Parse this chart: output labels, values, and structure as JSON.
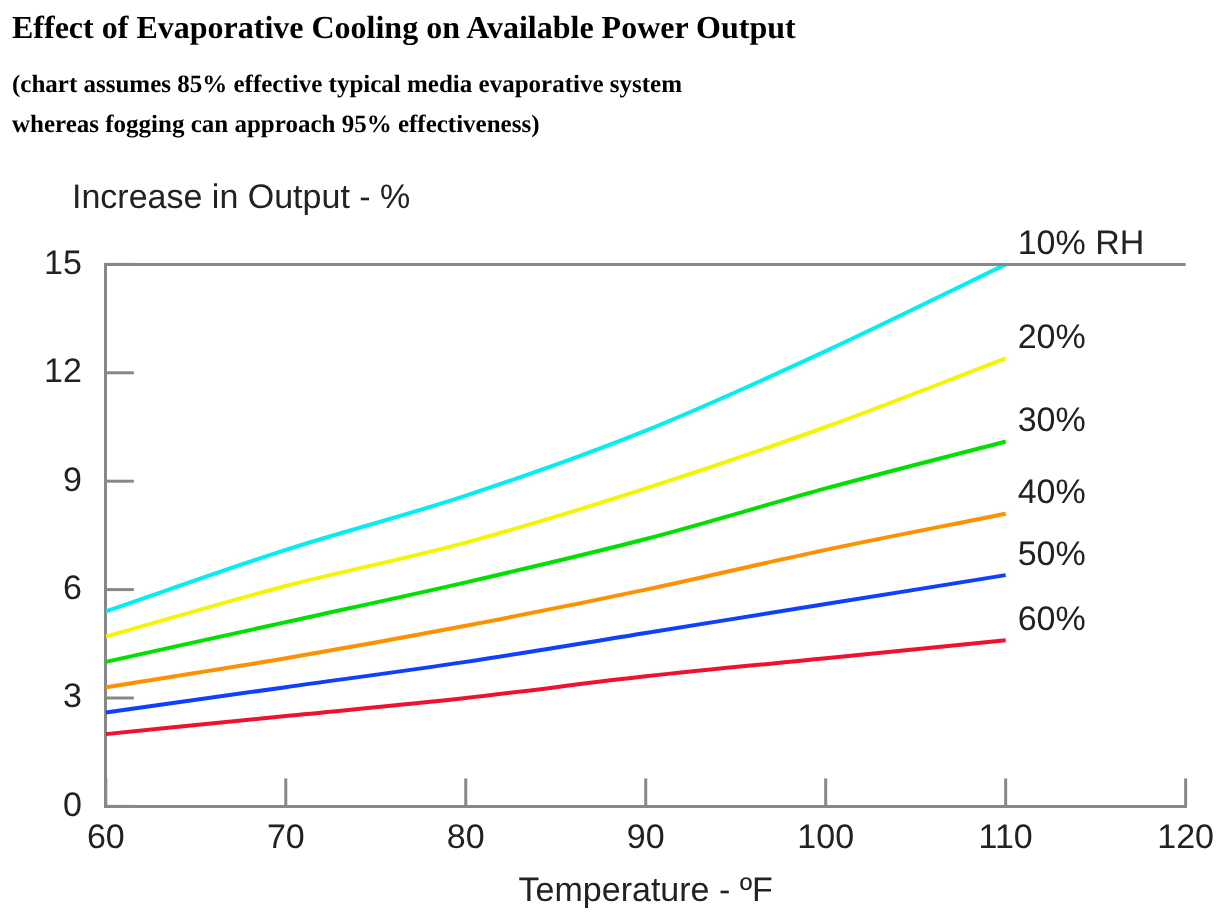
{
  "chart_data": {
    "type": "line",
    "title": "Effect of Evaporative Cooling on Available Power Output",
    "subtitle": "(chart assumes 85% effective typical media evaporative system whereas fogging can approach 95% effectiveness)",
    "xlabel": "Temperature - ºF",
    "ylabel": "Increase in Output - %",
    "x": [
      60,
      70,
      80,
      90,
      100,
      110
    ],
    "xlim": [
      60,
      120
    ],
    "xticks": [
      60,
      70,
      80,
      90,
      100,
      110,
      120
    ],
    "ylim": [
      0,
      15
    ],
    "yticks": [
      0,
      3,
      6,
      9,
      12,
      15
    ],
    "grid": false,
    "legend": false,
    "marker": "none",
    "line_style": "solid",
    "series": [
      {
        "name": "10% RH",
        "color": "#00f0f0",
        "values": [
          5.4,
          7.1,
          8.6,
          10.4,
          12.6,
          15.0
        ]
      },
      {
        "name": "20%",
        "color": "#f5f500",
        "values": [
          4.7,
          6.1,
          7.3,
          8.8,
          10.5,
          12.4
        ]
      },
      {
        "name": "30%",
        "color": "#00e000",
        "values": [
          4.0,
          5.1,
          6.2,
          7.4,
          8.8,
          10.1
        ]
      },
      {
        "name": "40%",
        "color": "#ff9000",
        "values": [
          3.3,
          4.1,
          5.0,
          6.0,
          7.1,
          8.1
        ]
      },
      {
        "name": "50%",
        "color": "#1040ff",
        "values": [
          2.6,
          3.3,
          4.0,
          4.8,
          5.6,
          6.4
        ]
      },
      {
        "name": "60%",
        "color": "#f01030",
        "values": [
          2.0,
          2.5,
          3.0,
          3.6,
          4.1,
          4.6
        ]
      }
    ]
  }
}
